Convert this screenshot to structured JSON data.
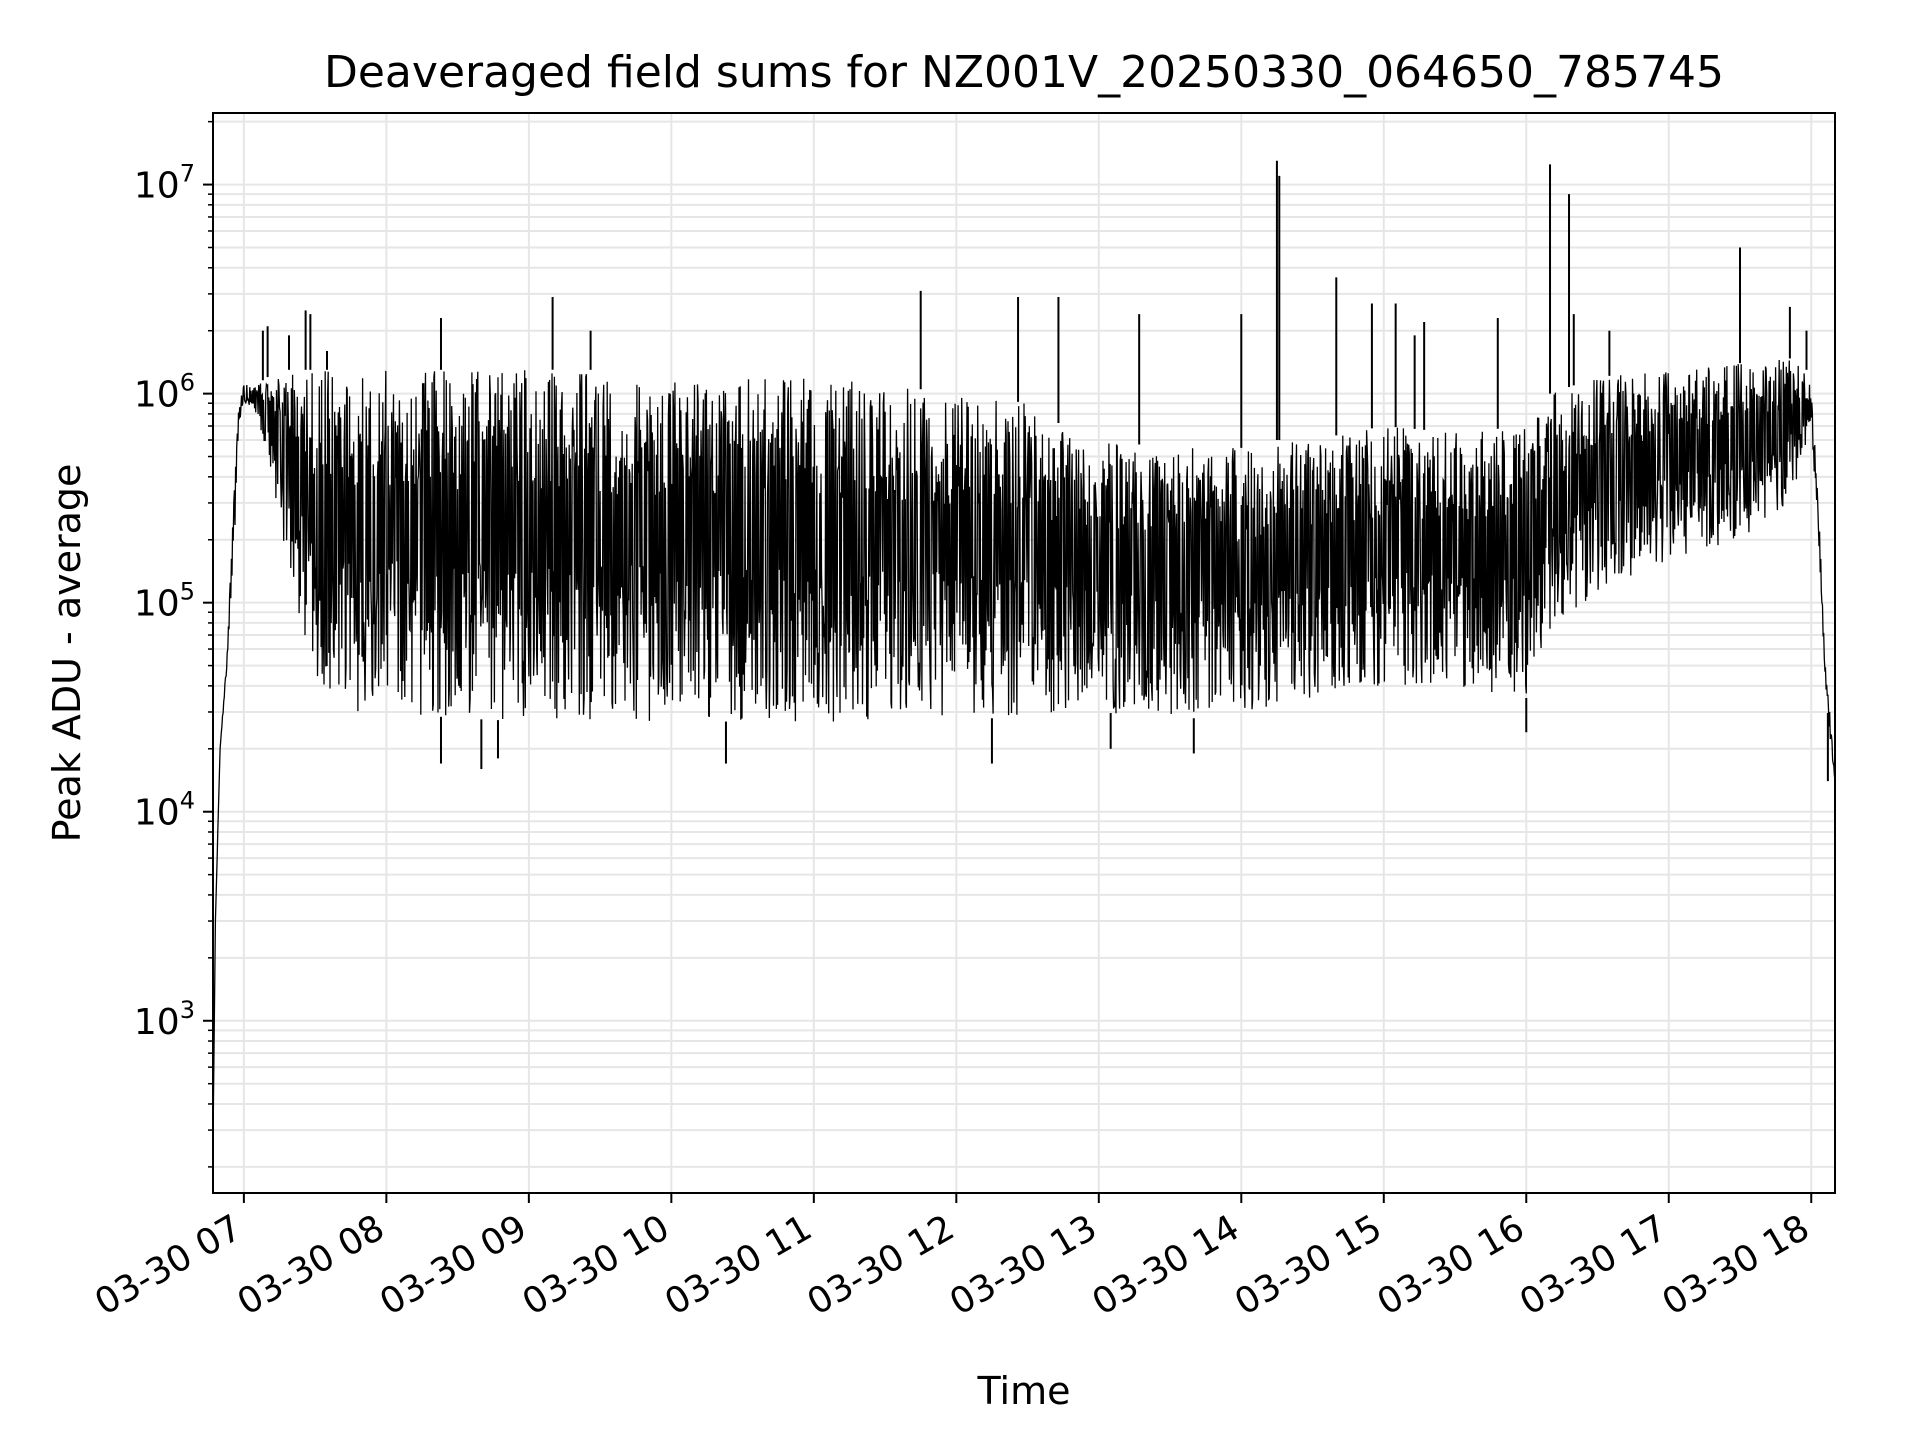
{
  "chart_data": {
    "type": "line",
    "title": "Deaveraged field sums for NZ001V_20250330_064650_785745",
    "xlabel": "Time",
    "ylabel": "Peak ADU - average",
    "yscale": "log",
    "grid": true,
    "line_color": "#000000",
    "grid_color": "#e6e6e6",
    "xlim": [
      "2025-03-30 06:47",
      "2025-03-30 18:10"
    ],
    "ylim": [
      150,
      22000000
    ],
    "x_ticks": [
      {
        "value": "2025-03-30 07:00",
        "label": "03-30 07"
      },
      {
        "value": "2025-03-30 08:00",
        "label": "03-30 08"
      },
      {
        "value": "2025-03-30 09:00",
        "label": "03-30 09"
      },
      {
        "value": "2025-03-30 10:00",
        "label": "03-30 10"
      },
      {
        "value": "2025-03-30 11:00",
        "label": "03-30 11"
      },
      {
        "value": "2025-03-30 12:00",
        "label": "03-30 12"
      },
      {
        "value": "2025-03-30 13:00",
        "label": "03-30 13"
      },
      {
        "value": "2025-03-30 14:00",
        "label": "03-30 14"
      },
      {
        "value": "2025-03-30 15:00",
        "label": "03-30 15"
      },
      {
        "value": "2025-03-30 16:00",
        "label": "03-30 16"
      },
      {
        "value": "2025-03-30 17:00",
        "label": "03-30 17"
      },
      {
        "value": "2025-03-30 18:00",
        "label": "03-30 18"
      }
    ],
    "y_ticks": [
      {
        "value": 1000,
        "base": "10",
        "exp": "3"
      },
      {
        "value": 10000,
        "base": "10",
        "exp": "4"
      },
      {
        "value": 100000,
        "base": "10",
        "exp": "5"
      },
      {
        "value": 1000000,
        "base": "10",
        "exp": "6"
      },
      {
        "value": 10000000,
        "base": "10",
        "exp": "7"
      }
    ],
    "envelope": {
      "x": [
        "2025-03-30 06:47",
        "2025-03-30 06:48",
        "2025-03-30 06:50",
        "2025-03-30 06:53",
        "2025-03-30 06:56",
        "2025-03-30 06:58",
        "2025-03-30 07:00",
        "2025-03-30 07:05",
        "2025-03-30 07:10",
        "2025-03-30 07:15",
        "2025-03-30 07:20",
        "2025-03-30 07:25",
        "2025-03-30 07:30",
        "2025-03-30 07:35",
        "2025-03-30 07:40",
        "2025-03-30 07:45",
        "2025-03-30 08:00",
        "2025-03-30 08:30",
        "2025-03-30 09:00",
        "2025-03-30 09:30",
        "2025-03-30 10:00",
        "2025-03-30 10:30",
        "2025-03-30 11:00",
        "2025-03-30 11:30",
        "2025-03-30 12:00",
        "2025-03-30 12:30",
        "2025-03-30 12:45",
        "2025-03-30 13:00",
        "2025-03-30 13:30",
        "2025-03-30 14:00",
        "2025-03-30 14:15",
        "2025-03-30 14:30",
        "2025-03-30 15:00",
        "2025-03-30 15:30",
        "2025-03-30 16:00",
        "2025-03-30 16:10",
        "2025-03-30 16:30",
        "2025-03-30 17:00",
        "2025-03-30 17:30",
        "2025-03-30 17:50",
        "2025-03-30 17:58",
        "2025-03-30 18:00",
        "2025-03-30 18:03",
        "2025-03-30 18:06",
        "2025-03-30 18:08",
        "2025-03-30 18:10"
      ],
      "low": [
        260,
        3000,
        20000,
        50000,
        200000,
        700000,
        900000,
        800000,
        500000,
        250000,
        120000,
        70000,
        45000,
        35000,
        32000,
        30000,
        30000,
        28000,
        27000,
        27000,
        27000,
        27000,
        27000,
        27000,
        28000,
        28000,
        30000,
        30000,
        28000,
        28000,
        30000,
        35000,
        40000,
        40000,
        35000,
        70000,
        110000,
        160000,
        200000,
        300000,
        500000,
        700000,
        200000,
        40000,
        22000,
        14000
      ],
      "high": [
        260,
        3000,
        20000,
        60000,
        400000,
        900000,
        1100000,
        1100000,
        1200000,
        1300000,
        1300000,
        1300000,
        1300000,
        1300000,
        1300000,
        1300000,
        1300000,
        1300000,
        1300000,
        1300000,
        1200000,
        1200000,
        1200000,
        1100000,
        1000000,
        900000,
        700000,
        600000,
        550000,
        550000,
        600000,
        600000,
        700000,
        650000,
        700000,
        1000000,
        1200000,
        1300000,
        1400000,
        1500000,
        1300000,
        1100000,
        300000,
        50000,
        30000,
        14000
      ]
    },
    "spikes": [
      {
        "x": "2025-03-30 07:08",
        "y": 2000000
      },
      {
        "x": "2025-03-30 07:10",
        "y": 2100000
      },
      {
        "x": "2025-03-30 07:19",
        "y": 1900000
      },
      {
        "x": "2025-03-30 07:26",
        "y": 2500000
      },
      {
        "x": "2025-03-30 07:28",
        "y": 2400000
      },
      {
        "x": "2025-03-30 07:35",
        "y": 1600000
      },
      {
        "x": "2025-03-30 08:23",
        "y": 2300000
      },
      {
        "x": "2025-03-30 09:10",
        "y": 2900000
      },
      {
        "x": "2025-03-30 09:26",
        "y": 2000000
      },
      {
        "x": "2025-03-30 11:45",
        "y": 3100000
      },
      {
        "x": "2025-03-30 12:26",
        "y": 2900000
      },
      {
        "x": "2025-03-30 12:43",
        "y": 2900000
      },
      {
        "x": "2025-03-30 13:17",
        "y": 2400000
      },
      {
        "x": "2025-03-30 14:00",
        "y": 2400000
      },
      {
        "x": "2025-03-30 14:15",
        "y": 13000000
      },
      {
        "x": "2025-03-30 14:16",
        "y": 11000000
      },
      {
        "x": "2025-03-30 14:40",
        "y": 3600000
      },
      {
        "x": "2025-03-30 14:55",
        "y": 2700000
      },
      {
        "x": "2025-03-30 15:05",
        "y": 2700000
      },
      {
        "x": "2025-03-30 15:13",
        "y": 1900000
      },
      {
        "x": "2025-03-30 15:17",
        "y": 2200000
      },
      {
        "x": "2025-03-30 15:48",
        "y": 2300000
      },
      {
        "x": "2025-03-30 16:10",
        "y": 12500000
      },
      {
        "x": "2025-03-30 16:18",
        "y": 9000000
      },
      {
        "x": "2025-03-30 16:20",
        "y": 2400000
      },
      {
        "x": "2025-03-30 16:35",
        "y": 2000000
      },
      {
        "x": "2025-03-30 17:30",
        "y": 5000000
      },
      {
        "x": "2025-03-30 17:51",
        "y": 2600000
      },
      {
        "x": "2025-03-30 17:58",
        "y": 2000000
      }
    ],
    "dips": [
      {
        "x": "2025-03-30 08:23",
        "y": 17000
      },
      {
        "x": "2025-03-30 08:40",
        "y": 16000
      },
      {
        "x": "2025-03-30 08:47",
        "y": 18000
      },
      {
        "x": "2025-03-30 10:23",
        "y": 17000
      },
      {
        "x": "2025-03-30 12:15",
        "y": 17000
      },
      {
        "x": "2025-03-30 13:05",
        "y": 20000
      },
      {
        "x": "2025-03-30 13:40",
        "y": 19000
      },
      {
        "x": "2025-03-30 16:00",
        "y": 24000
      },
      {
        "x": "2025-03-30 18:07",
        "y": 14000
      }
    ]
  }
}
